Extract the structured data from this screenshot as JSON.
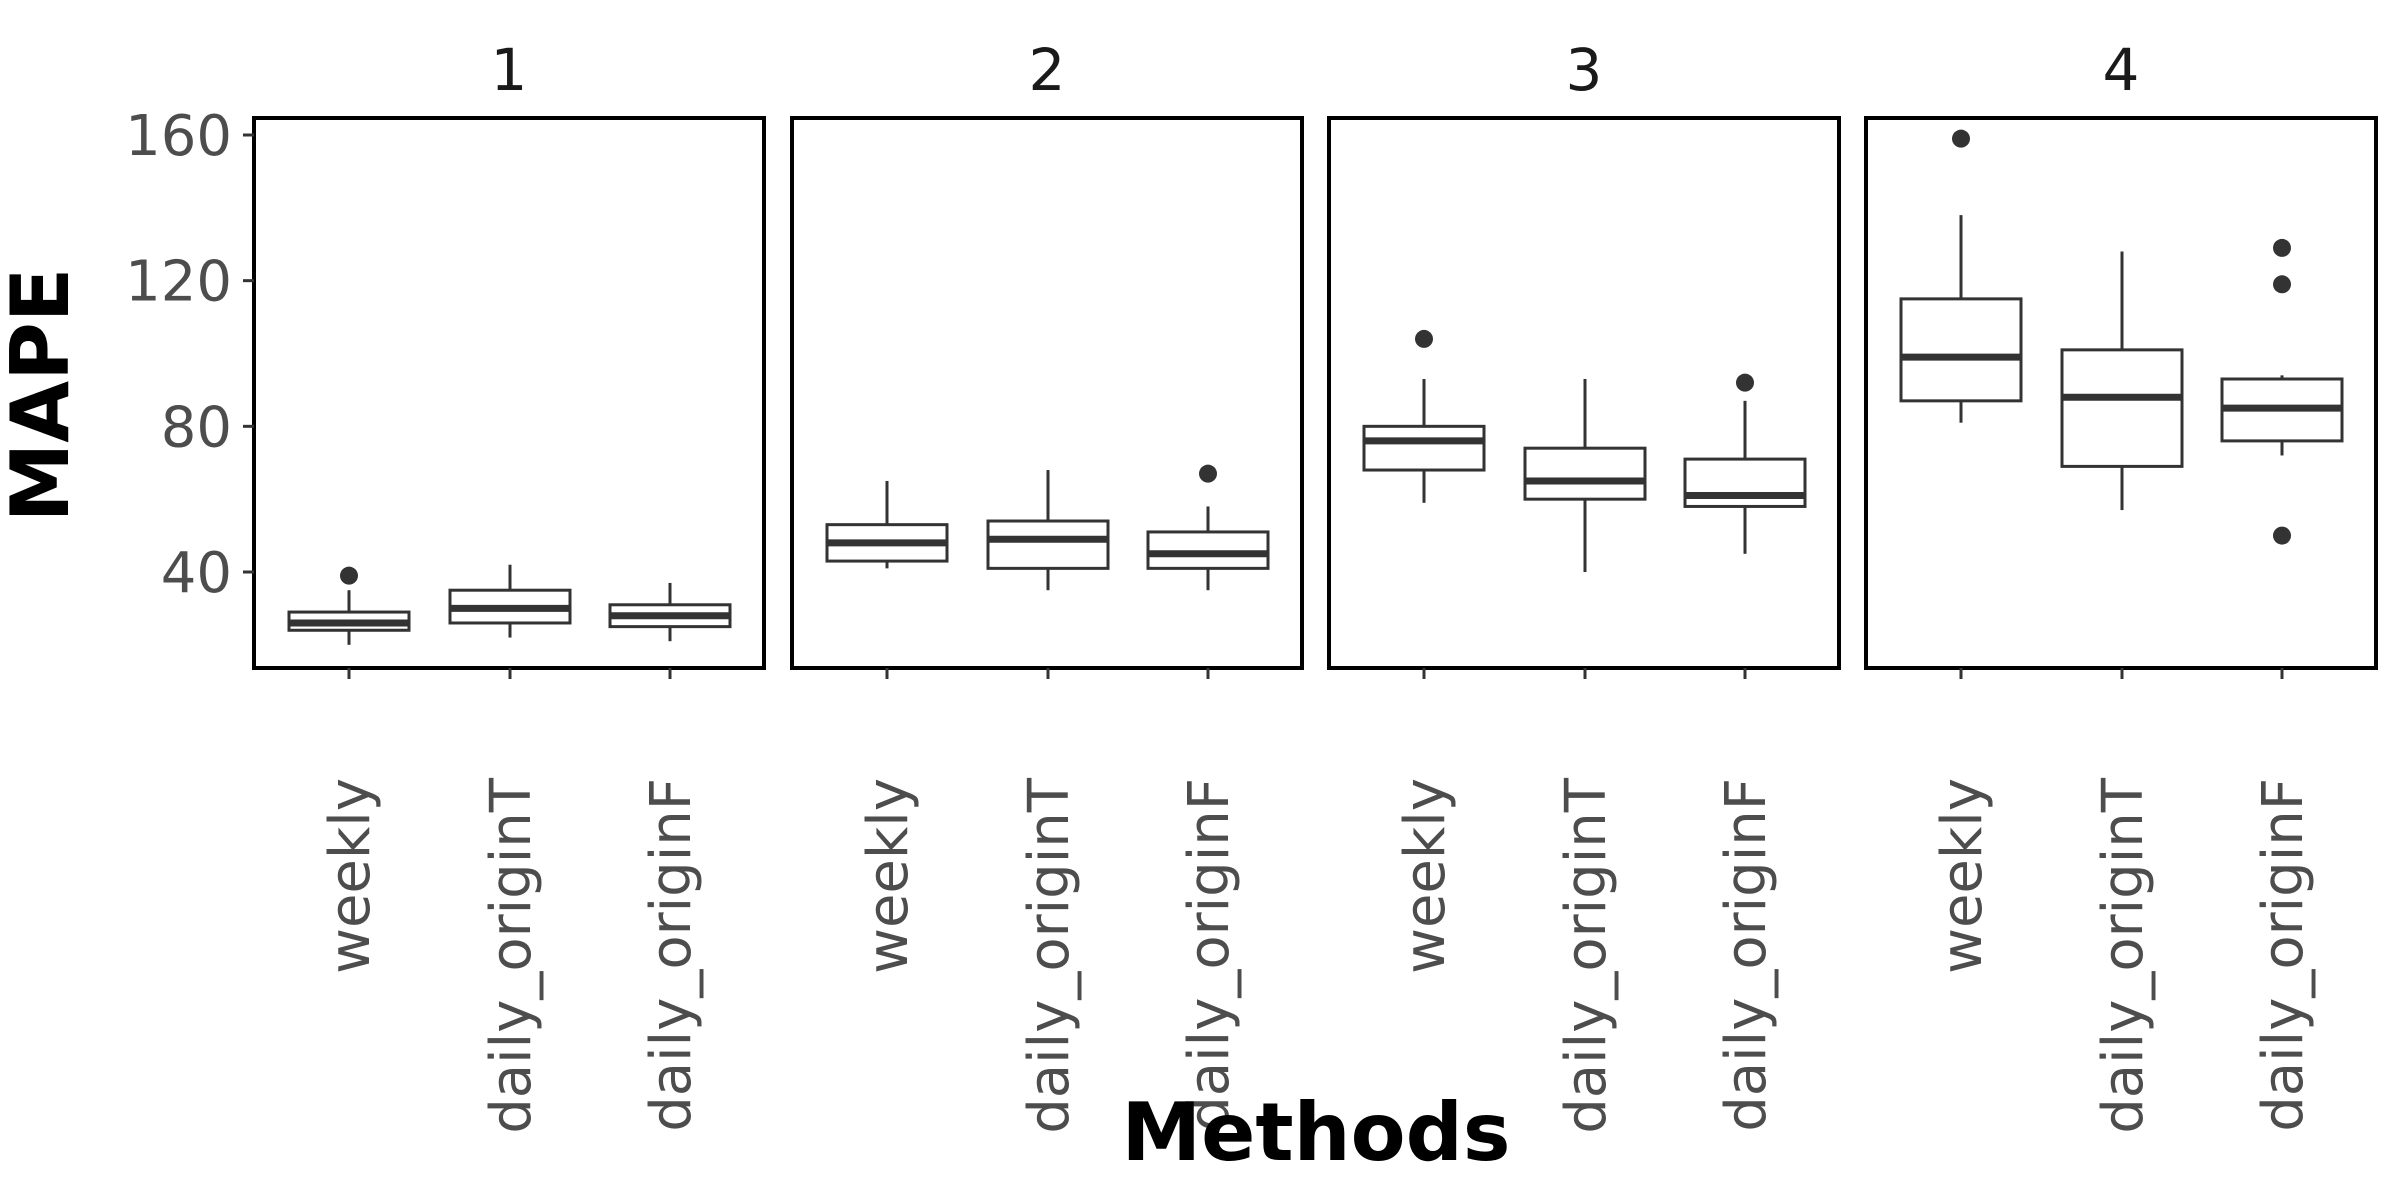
{
  "chart_data": {
    "type": "boxplot",
    "xlabel": "Methods",
    "ylabel": "MAPE",
    "yticks": [
      40,
      80,
      120,
      160
    ],
    "ylim": [
      15,
      165
    ],
    "categories": [
      "weekly",
      "daily_originT",
      "daily_originF"
    ],
    "grid": false,
    "facets": [
      {
        "label": "1",
        "boxes": [
          {
            "category": "weekly",
            "whisker_low": 20,
            "q1": 24,
            "median": 26,
            "q3": 29,
            "whisker_high": 35,
            "outliers": [
              39
            ]
          },
          {
            "category": "daily_originT",
            "whisker_low": 22,
            "q1": 26,
            "median": 30,
            "q3": 35,
            "whisker_high": 42,
            "outliers": []
          },
          {
            "category": "daily_originF",
            "whisker_low": 21,
            "q1": 25,
            "median": 28,
            "q3": 31,
            "whisker_high": 37,
            "outliers": []
          }
        ]
      },
      {
        "label": "2",
        "boxes": [
          {
            "category": "weekly",
            "whisker_low": 41,
            "q1": 43,
            "median": 48,
            "q3": 53,
            "whisker_high": 65,
            "outliers": []
          },
          {
            "category": "daily_originT",
            "whisker_low": 35,
            "q1": 41,
            "median": 49,
            "q3": 54,
            "whisker_high": 68,
            "outliers": []
          },
          {
            "category": "daily_originF",
            "whisker_low": 35,
            "q1": 41,
            "median": 45,
            "q3": 51,
            "whisker_high": 58,
            "outliers": [
              67
            ]
          }
        ]
      },
      {
        "label": "3",
        "boxes": [
          {
            "category": "weekly",
            "whisker_low": 59,
            "q1": 68,
            "median": 76,
            "q3": 80,
            "whisker_high": 93,
            "outliers": [
              104
            ]
          },
          {
            "category": "daily_originT",
            "whisker_low": 40,
            "q1": 60,
            "median": 65,
            "q3": 74,
            "whisker_high": 93,
            "outliers": []
          },
          {
            "category": "daily_originF",
            "whisker_low": 45,
            "q1": 58,
            "median": 61,
            "q3": 71,
            "whisker_high": 87,
            "outliers": [
              92
            ]
          }
        ]
      },
      {
        "label": "4",
        "boxes": [
          {
            "category": "weekly",
            "whisker_low": 81,
            "q1": 87,
            "median": 99,
            "q3": 115,
            "whisker_high": 138,
            "outliers": [
              159
            ]
          },
          {
            "category": "daily_originT",
            "whisker_low": 57,
            "q1": 69,
            "median": 88,
            "q3": 101,
            "whisker_high": 128,
            "outliers": []
          },
          {
            "category": "daily_originF",
            "whisker_low": 72,
            "q1": 76,
            "median": 85,
            "q3": 93,
            "whisker_high": 94,
            "outliers": [
              50,
              119,
              129
            ]
          }
        ]
      }
    ]
  },
  "colors": {
    "box_fill": "#ffffff",
    "box_stroke": "#333333",
    "outlier": "#333333",
    "panel_border": "#000000",
    "tick_text": "#4d4d4d"
  }
}
